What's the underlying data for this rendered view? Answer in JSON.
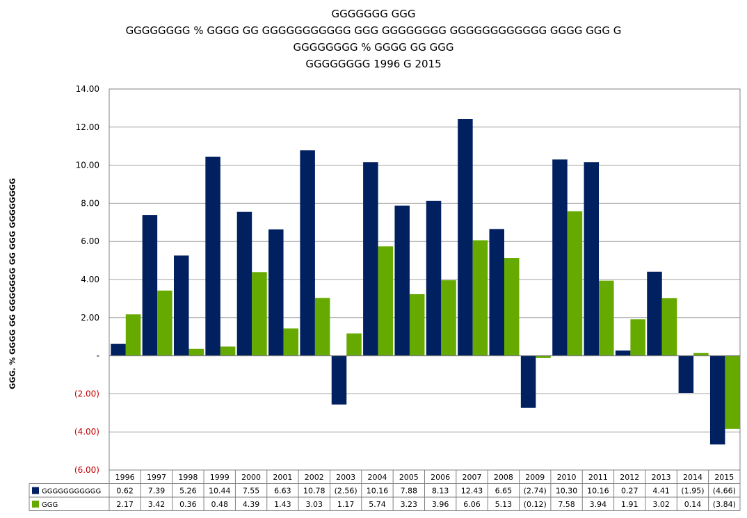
{
  "chart_data": {
    "type": "bar",
    "title_lines": [
      "GGGGGGG GGG",
      "GGGGGGGG % GGGG GG GGGGGGGGGGG GGG GGGGGGGG GGGGGGGGGGGG GGGG GGG G",
      "GGGGGGGG % GGGG GG GGG",
      "GGGGGGGG 1996 G 2015"
    ],
    "ylabel": "GGG. % GGGG GG GGGGGGG GG GGG GGGGGGGG",
    "xlabel": "",
    "categories": [
      "1996",
      "1997",
      "1998",
      "1999",
      "2000",
      "2001",
      "2002",
      "2003",
      "2004",
      "2005",
      "2006",
      "2007",
      "2008",
      "2009",
      "2010",
      "2011",
      "2012",
      "2013",
      "2014",
      "2015"
    ],
    "ylim": [
      -6,
      14
    ],
    "y_ticks": [
      14,
      12,
      10,
      8,
      6,
      4,
      2,
      0,
      -2,
      -4,
      -6
    ],
    "y_tick_labels": [
      "14.00",
      "12.00",
      "10.00",
      "8.00",
      "6.00",
      "4.00",
      "2.00",
      "-",
      "(2.00)",
      "(4.00)",
      "(6.00)"
    ],
    "negative_tick_color": "#c00000",
    "grid": true,
    "legend": "data-table-below",
    "series": [
      {
        "name": "GGGGGGGGGGG",
        "color": "#002060",
        "values": [
          0.62,
          7.39,
          5.26,
          10.44,
          7.55,
          6.63,
          10.78,
          -2.56,
          10.16,
          7.88,
          8.13,
          12.43,
          6.65,
          -2.74,
          10.3,
          10.16,
          0.27,
          4.41,
          -1.95,
          -4.66
        ],
        "labels": [
          "0.62",
          "7.39",
          "5.26",
          "10.44",
          "7.55",
          "6.63",
          "10.78",
          "(2.56)",
          "10.16",
          "7.88",
          "8.13",
          "12.43",
          "6.65",
          "(2.74)",
          "10.30",
          "10.16",
          "0.27",
          "4.41",
          "(1.95)",
          "(4.66)"
        ]
      },
      {
        "name": "GGG",
        "color": "#66aa00",
        "values": [
          2.17,
          3.42,
          0.36,
          0.48,
          4.39,
          1.43,
          3.03,
          1.17,
          5.74,
          3.23,
          3.96,
          6.06,
          5.13,
          -0.12,
          7.58,
          3.94,
          1.91,
          3.02,
          0.14,
          -3.84
        ],
        "labels": [
          "2.17",
          "3.42",
          "0.36",
          "0.48",
          "4.39",
          "1.43",
          "3.03",
          "1.17",
          "5.74",
          "3.23",
          "3.96",
          "6.06",
          "5.13",
          "(0.12)",
          "7.58",
          "3.94",
          "1.91",
          "3.02",
          "0.14",
          "(3.84)"
        ]
      }
    ]
  }
}
